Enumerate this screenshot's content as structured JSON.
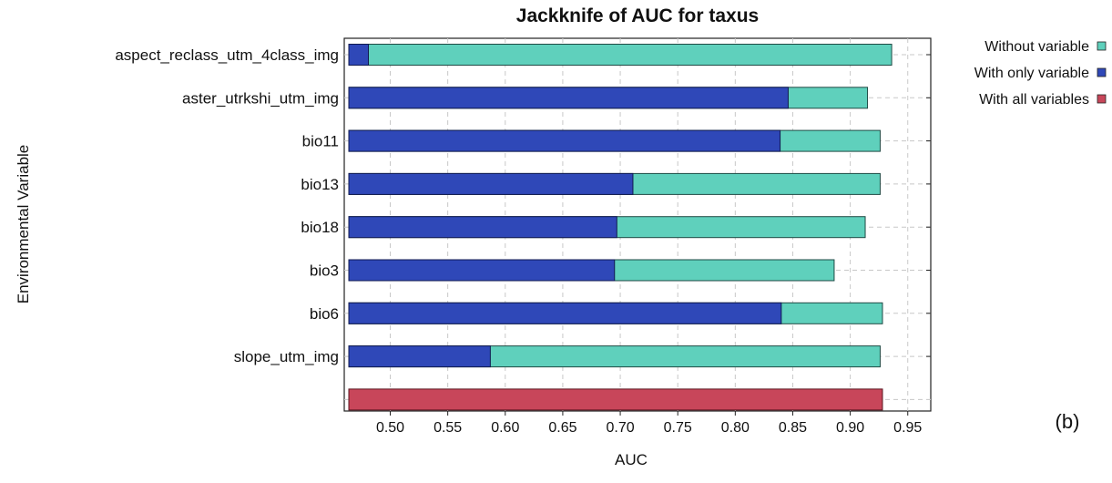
{
  "chart_data": {
    "type": "bar",
    "title": "Jackknife of AUC for taxus",
    "xlabel": "AUC",
    "ylabel": "Environmental Variable",
    "xlim": [
      0.46,
      0.97
    ],
    "xticks": [
      "0.50",
      "0.55",
      "0.60",
      "0.65",
      "0.70",
      "0.75",
      "0.80",
      "0.85",
      "0.90",
      "0.95"
    ],
    "xtick_values": [
      0.5,
      0.55,
      0.6,
      0.65,
      0.7,
      0.75,
      0.8,
      0.85,
      0.9,
      0.95
    ],
    "categories": [
      "aspect_reclass_utm_4class_img",
      "aster_utrkshi_utm_img",
      "bio11",
      "bio13",
      "bio18",
      "bio3",
      "bio6",
      "slope_utm_img"
    ],
    "series": [
      {
        "name": "Without variable",
        "color": "#5fd0bc",
        "values": [
          0.936,
          0.915,
          0.926,
          0.926,
          0.913,
          0.886,
          0.928,
          0.926
        ]
      },
      {
        "name": "With only variable",
        "color": "#2f48b8",
        "values": [
          0.481,
          0.846,
          0.839,
          0.711,
          0.697,
          0.695,
          0.84,
          0.587
        ]
      }
    ],
    "all_variables": {
      "name": "With all variables",
      "color": "#c8465a",
      "value": 0.928
    },
    "grid": true,
    "legend_position": "top-right",
    "panel_label": "(b)"
  }
}
